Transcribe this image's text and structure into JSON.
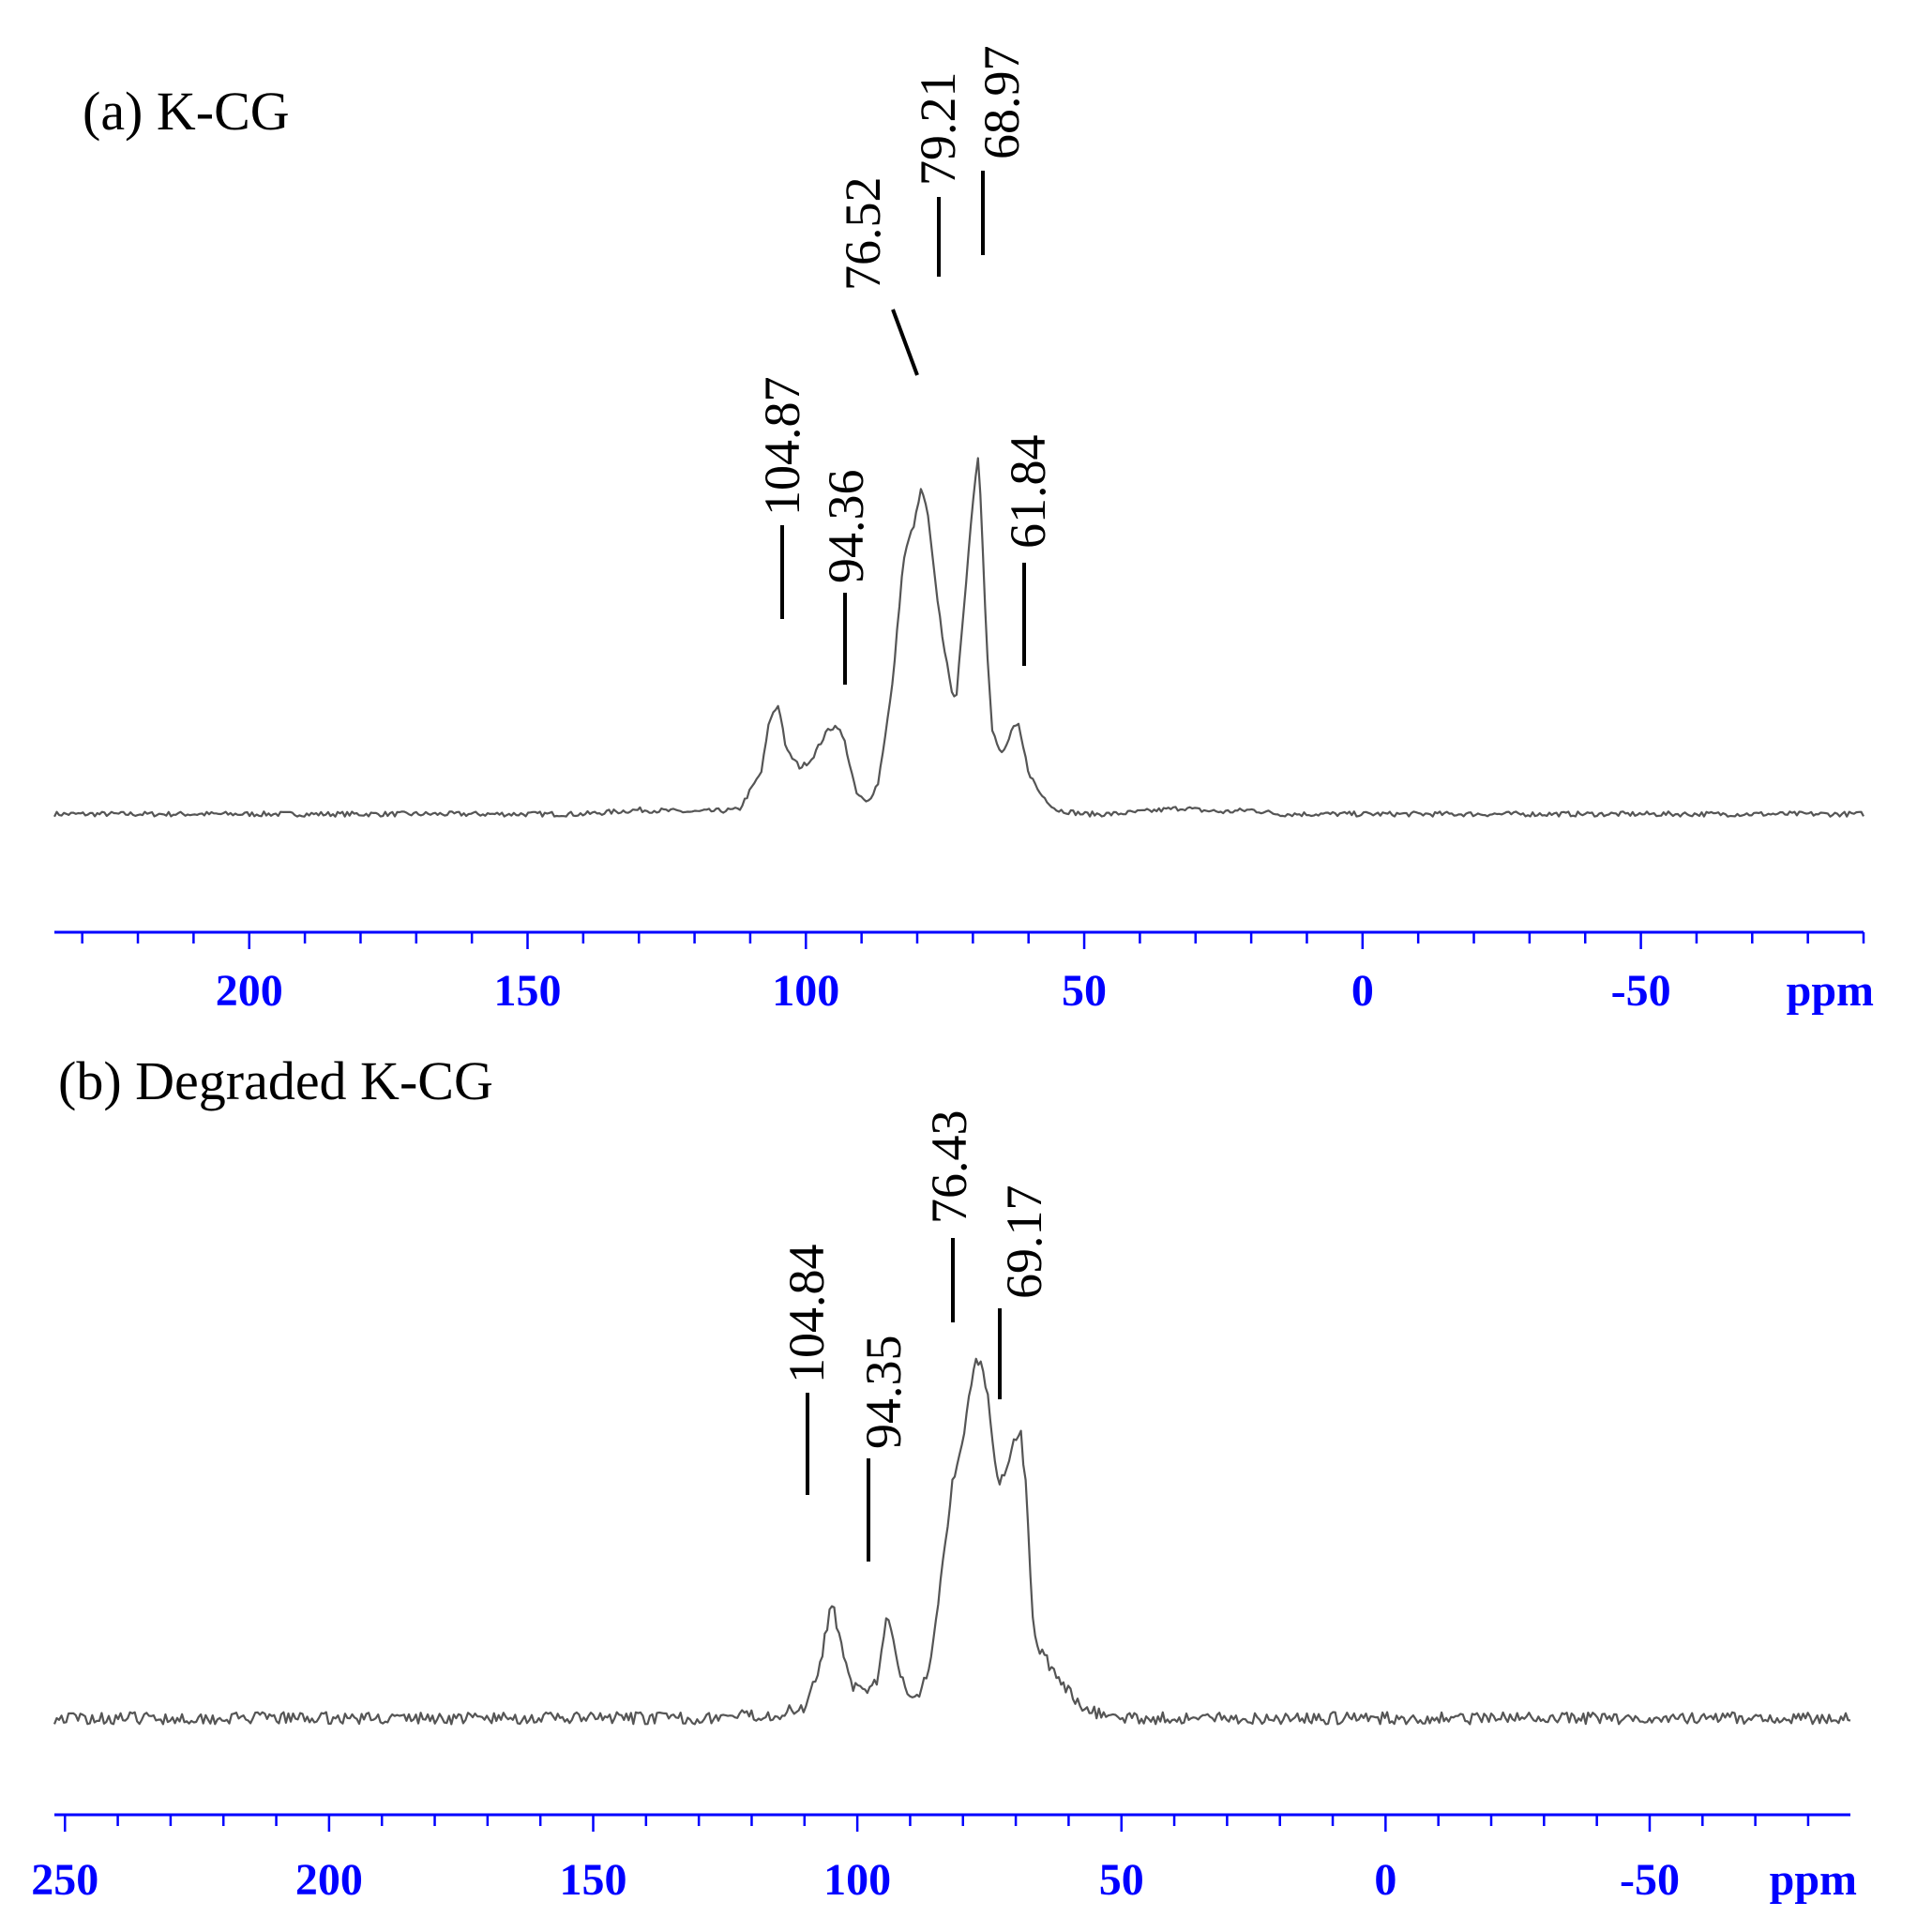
{
  "chart_data": [
    {
      "type": "line",
      "title": "(a) K-CG",
      "xlabel": "ppm",
      "x_reversed": true,
      "xlim": [
        235,
        -90
      ],
      "x_ticks": [
        200,
        150,
        100,
        50,
        0,
        -50
      ],
      "x_tick_labels": [
        "200",
        "150",
        "100",
        "50",
        "0",
        "-50"
      ],
      "axis_color": "#0000ff",
      "line_color": "#555555",
      "grid": false,
      "y_axis_shown": false,
      "series": [
        {
          "x": [
            235,
            200,
            160,
            140,
            130,
            120,
            112,
            108,
            106.5,
            104.87,
            103.5,
            101,
            99,
            96,
            94.36,
            93,
            91,
            89,
            87,
            84.5,
            82.5,
            81.5,
            80.5,
            79.21,
            78,
            77,
            76.52,
            75.5,
            74,
            73,
            72.5,
            71.5,
            70.5,
            69.5,
            68.97,
            68.3,
            67.5,
            66.5,
            65,
            64,
            63,
            61.84,
            61,
            60,
            58,
            55,
            50,
            45,
            40,
            32,
            30,
            25,
            20,
            15,
            10,
            0,
            -50,
            -90
          ],
          "y": [
            0,
            0,
            0,
            0,
            0.02,
            0.01,
            0.02,
            0.2,
            0.45,
            0.52,
            0.3,
            0.22,
            0.26,
            0.4,
            0.42,
            0.34,
            0.1,
            0.05,
            0.15,
            0.6,
            1.2,
            1.3,
            1.38,
            1.55,
            1.4,
            1.15,
            1.05,
            0.85,
            0.6,
            0.55,
            0.7,
            1.0,
            1.35,
            1.6,
            1.72,
            1.3,
            0.8,
            0.4,
            0.28,
            0.32,
            0.4,
            0.42,
            0.32,
            0.2,
            0.1,
            0.02,
            0.0,
            0.0,
            0.01,
            0.03,
            0.02,
            0.01,
            0.02,
            0.0,
            0.0,
            0.0,
            0.0,
            0.0
          ],
          "noise": 0.012
        }
      ],
      "annotations": [
        "104.87",
        "94.36",
        "76.52",
        "79.21",
        "68.97",
        "61.84"
      ]
    },
    {
      "type": "line",
      "title": "(b) Degraded K-CG",
      "xlabel": "ppm",
      "x_reversed": true,
      "xlim": [
        252,
        -88
      ],
      "x_ticks": [
        250,
        200,
        150,
        100,
        50,
        0,
        -50
      ],
      "x_tick_labels": [
        "250",
        "200",
        "150",
        "100",
        "50",
        "0",
        "-50"
      ],
      "axis_color": "#0000ff",
      "line_color": "#555555",
      "grid": false,
      "y_axis_shown": false,
      "series": [
        {
          "x": [
            252,
            200,
            160,
            130,
            115,
            110,
            107,
            104.84,
            103,
            101,
            98,
            96,
            94.35,
            92.5,
            91,
            89,
            88,
            86,
            84,
            82,
            80,
            78,
            76.43,
            75,
            74,
            73,
            72,
            70.5,
            69.17,
            68,
            67,
            66,
            64,
            62,
            58,
            55,
            50,
            40,
            20,
            0,
            -20,
            -50,
            -88
          ],
          "y": [
            0,
            0,
            0,
            0,
            0.02,
            0.06,
            0.3,
            0.62,
            0.4,
            0.18,
            0.12,
            0.22,
            0.56,
            0.3,
            0.15,
            0.12,
            0.15,
            0.32,
            0.8,
            1.25,
            1.5,
            1.88,
            1.92,
            1.65,
            1.38,
            1.25,
            1.3,
            1.48,
            1.55,
            1.2,
            0.6,
            0.4,
            0.3,
            0.2,
            0.08,
            0.03,
            0.0,
            0.0,
            0.0,
            0.0,
            0.0,
            0.0,
            0.0
          ],
          "noise": 0.032
        }
      ],
      "annotations": [
        "104.84",
        "94.35",
        "76.43",
        "69.17"
      ]
    }
  ]
}
